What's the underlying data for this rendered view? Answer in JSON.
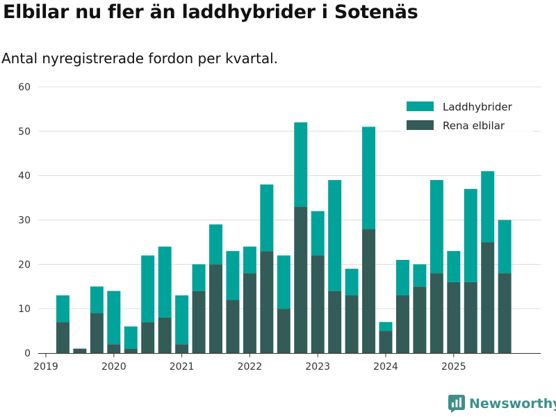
{
  "title": "Elbilar nu fler än laddhybrider i Sotenäs",
  "subtitle": "Antal nyregistrerade fordon per kvartal.",
  "brand": "Newsworthy",
  "colors": {
    "laddhybrider": "#00a39a",
    "elbilar": "#335c58",
    "grid": "#dddddd",
    "axis": "#333333"
  },
  "chart_data": {
    "type": "bar",
    "stacked": true,
    "ylim": [
      0,
      60
    ],
    "yticks": [
      0,
      10,
      20,
      30,
      40,
      50,
      60
    ],
    "year_ticks": [
      "2019",
      "2020",
      "2021",
      "2022",
      "2023",
      "2024",
      "2025"
    ],
    "categories": [
      "2019Q1",
      "2019Q2",
      "2019Q3",
      "2019Q4",
      "2020Q1",
      "2020Q2",
      "2020Q3",
      "2020Q4",
      "2021Q1",
      "2021Q2",
      "2021Q3",
      "2021Q4",
      "2022Q1",
      "2022Q2",
      "2022Q3",
      "2022Q4",
      "2023Q1",
      "2023Q2",
      "2023Q3",
      "2023Q4",
      "2024Q1",
      "2024Q2",
      "2024Q3",
      "2024Q4",
      "2025Q1",
      "2025Q2",
      "2025Q3",
      "2025Q4"
    ],
    "series": [
      {
        "name": "Rena elbilar",
        "values": [
          0,
          7,
          1,
          9,
          2,
          1,
          7,
          8,
          2,
          14,
          20,
          12,
          18,
          23,
          10,
          33,
          22,
          14,
          13,
          28,
          5,
          13,
          15,
          18,
          16,
          16,
          25,
          18
        ]
      },
      {
        "name": "Laddhybrider",
        "values": [
          0,
          6,
          0,
          6,
          12,
          5,
          15,
          16,
          11,
          6,
          9,
          11,
          6,
          15,
          12,
          19,
          10,
          25,
          6,
          23,
          2,
          8,
          5,
          21,
          7,
          21,
          16,
          12
        ]
      }
    ],
    "legend": [
      "Laddhybrider",
      "Rena elbilar"
    ],
    "legend_position": "top-right"
  }
}
